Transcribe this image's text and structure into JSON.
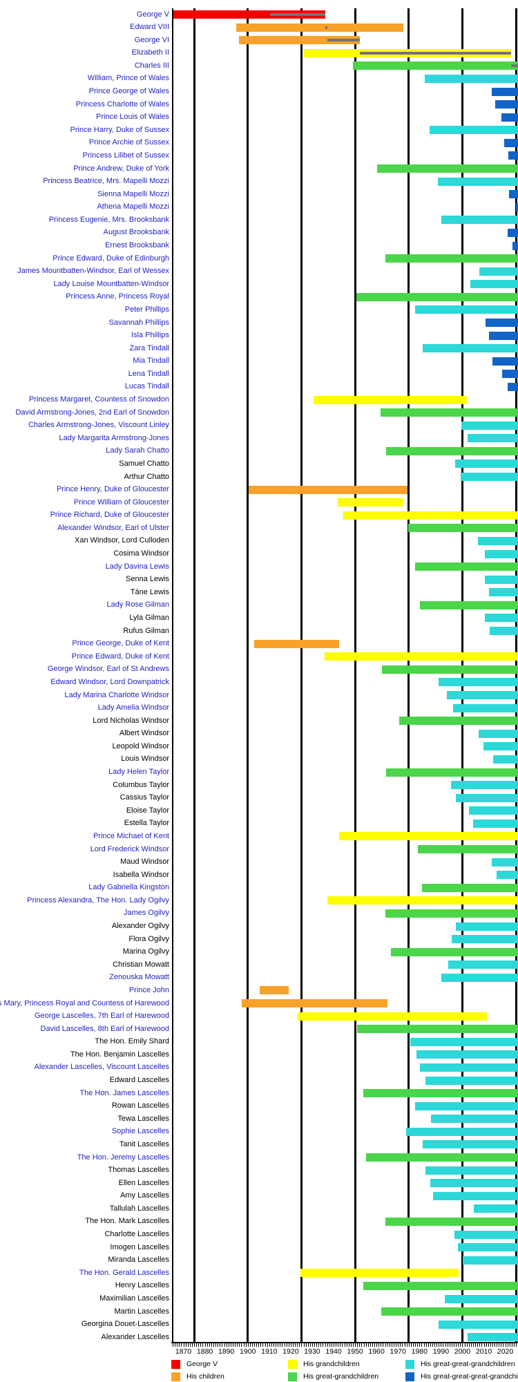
{
  "chart_data": {
    "type": "timeline",
    "description": "Lifespan timeline of George V and his descendants; grey inner stripes mark reigns of monarchs",
    "axis": {
      "start_year": 1865,
      "end_year": 2026,
      "tick_interval_years": 1,
      "gridline_years": [
        1875,
        1900,
        1925,
        1950,
        1975,
        2000,
        2025
      ],
      "decade_labels": [
        "1870",
        "1880",
        "1890",
        "1900",
        "1910",
        "1920",
        "1930",
        "1940",
        "1950",
        "1960",
        "1970",
        "1980",
        "1990",
        "2000",
        "2010",
        "2020"
      ]
    },
    "colors": {
      "generation": [
        "#f70000",
        "#f8a22a",
        "#fdfd00",
        "#4ad54a",
        "#2cd8d8",
        "#1164c8"
      ],
      "reign_stripe": "#747474",
      "link_text": "#1f1fbf",
      "plain_text": "#000000",
      "gridline": "#000000"
    },
    "legend": [
      {
        "label": "George V",
        "generation": 0
      },
      {
        "label": "His children",
        "generation": 1
      },
      {
        "label": "His grandchildren",
        "generation": 2
      },
      {
        "label": "His great-grandchildren",
        "generation": 3
      },
      {
        "label": "His great-great-grandchildren",
        "generation": 4
      },
      {
        "label": "His great-great-great-grandchildren",
        "generation": 5
      }
    ],
    "people": [
      {
        "name": "George V",
        "linked": true,
        "generation": 0,
        "born": 1865.4,
        "died": 1936.05,
        "reign": [
          1910.35,
          1936.05
        ]
      },
      {
        "name": "Edward VIII",
        "linked": true,
        "generation": 1,
        "born": 1894.5,
        "died": 1972.4,
        "reign": [
          1936.05,
          1936.95
        ]
      },
      {
        "name": "George VI",
        "linked": true,
        "generation": 1,
        "born": 1895.95,
        "died": 1952.1,
        "reign": [
          1936.95,
          1952.1
        ]
      },
      {
        "name": "Elizabeth II",
        "linked": true,
        "generation": 2,
        "born": 1926.3,
        "died": 2022.7,
        "reign": [
          1952.1,
          2022.7
        ]
      },
      {
        "name": "Charles III",
        "linked": true,
        "generation": 3,
        "born": 1948.9,
        "died": null,
        "reign": [
          2022.7,
          null
        ]
      },
      {
        "name": "William, Prince of Wales",
        "linked": true,
        "generation": 4,
        "born": 1982.5,
        "died": null
      },
      {
        "name": "Prince George of Wales",
        "linked": true,
        "generation": 5,
        "born": 2013.55,
        "died": null
      },
      {
        "name": "Princess Charlotte of Wales",
        "linked": true,
        "generation": 5,
        "born": 2015.35,
        "died": null
      },
      {
        "name": "Prince Louis of Wales",
        "linked": true,
        "generation": 5,
        "born": 2018.3,
        "died": null
      },
      {
        "name": "Prince Harry, Duke of Sussex",
        "linked": true,
        "generation": 4,
        "born": 1984.7,
        "died": null
      },
      {
        "name": "Prince Archie of Sussex",
        "linked": true,
        "generation": 5,
        "born": 2019.35,
        "died": null
      },
      {
        "name": "Princess Lilibet of Sussex",
        "linked": true,
        "generation": 5,
        "born": 2021.4,
        "died": null
      },
      {
        "name": "Prince Andrew, Duke of York",
        "linked": true,
        "generation": 3,
        "born": 1960.15,
        "died": null
      },
      {
        "name": "Princess Beatrice, Mrs. Mapelli Mozzi",
        "linked": true,
        "generation": 4,
        "born": 1988.6,
        "died": null
      },
      {
        "name": "Sienna Mapelli Mozzi",
        "linked": true,
        "generation": 5,
        "born": 2021.7,
        "died": null
      },
      {
        "name": "Athena Mapelli Mozzi",
        "linked": true,
        "generation": 5,
        "born": 2025.05,
        "died": null
      },
      {
        "name": "Princess Eugenie, Mrs. Brooksbank",
        "linked": true,
        "generation": 4,
        "born": 1990.25,
        "died": null
      },
      {
        "name": "August Brooksbank",
        "linked": true,
        "generation": 5,
        "born": 2021.1,
        "died": null
      },
      {
        "name": "Ernest Brooksbank",
        "linked": true,
        "generation": 5,
        "born": 2023.4,
        "died": null
      },
      {
        "name": "Prince Edward, Duke of Edinburgh",
        "linked": true,
        "generation": 3,
        "born": 1964.2,
        "died": null
      },
      {
        "name": "James Mountbatten-Windsor, Earl of Wessex",
        "linked": true,
        "generation": 4,
        "born": 2007.95,
        "died": null
      },
      {
        "name": "Lady Louise Mountbatten-Windsor",
        "linked": true,
        "generation": 4,
        "born": 2003.85,
        "died": null
      },
      {
        "name": "Princess Anne, Princess Royal",
        "linked": true,
        "generation": 3,
        "born": 1950.6,
        "died": null
      },
      {
        "name": "Peter Phillips",
        "linked": true,
        "generation": 4,
        "born": 1977.85,
        "died": null
      },
      {
        "name": "Savannah Phillips",
        "linked": true,
        "generation": 5,
        "born": 2010.95,
        "died": null
      },
      {
        "name": "Isla Phillips",
        "linked": true,
        "generation": 5,
        "born": 2012.25,
        "died": null
      },
      {
        "name": "Zara Tindall",
        "linked": true,
        "generation": 4,
        "born": 1981.4,
        "died": null
      },
      {
        "name": "Mia Tindall",
        "linked": true,
        "generation": 5,
        "born": 2014.05,
        "died": null
      },
      {
        "name": "Lena Tindall",
        "linked": true,
        "generation": 5,
        "born": 2018.45,
        "died": null
      },
      {
        "name": "Lucas Tindall",
        "linked": true,
        "generation": 5,
        "born": 2021.2,
        "died": null
      },
      {
        "name": "Princess Margaret, Countess of Snowdon",
        "linked": true,
        "generation": 2,
        "born": 1930.6,
        "died": 2002.1
      },
      {
        "name": "David Armstrong-Jones, 2nd Earl of Snowdon",
        "linked": true,
        "generation": 3,
        "born": 1961.85,
        "died": null
      },
      {
        "name": "Charles Armstrong-Jones, Viscount Linley",
        "linked": true,
        "generation": 4,
        "born": 1999.5,
        "died": null
      },
      {
        "name": "Lady Margarita Armstrong-Jones",
        "linked": true,
        "generation": 4,
        "born": 2002.35,
        "died": null
      },
      {
        "name": "Lady Sarah Chatto",
        "linked": true,
        "generation": 3,
        "born": 1964.35,
        "died": null
      },
      {
        "name": "Samuel Chatto",
        "linked": false,
        "generation": 4,
        "born": 1996.55,
        "died": null
      },
      {
        "name": "Arthur Chatto",
        "linked": false,
        "generation": 4,
        "born": 1999.1,
        "died": null
      },
      {
        "name": "Prince Henry, Duke of Gloucester",
        "linked": true,
        "generation": 1,
        "born": 1900.25,
        "died": 1974.45
      },
      {
        "name": "Prince William of Gloucester",
        "linked": true,
        "generation": 2,
        "born": 1941.95,
        "died": 1972.65
      },
      {
        "name": "Prince Richard, Duke of Gloucester",
        "linked": true,
        "generation": 2,
        "born": 1944.65,
        "died": null
      },
      {
        "name": "Alexander Windsor, Earl of Ulster",
        "linked": true,
        "generation": 3,
        "born": 1974.8,
        "died": null
      },
      {
        "name": "Xan Windsor, Lord Culloden",
        "linked": false,
        "generation": 4,
        "born": 2007.2,
        "died": null
      },
      {
        "name": "Cosima Windsor",
        "linked": false,
        "generation": 4,
        "born": 2010.35,
        "died": null
      },
      {
        "name": "Lady Davina Lewis",
        "linked": true,
        "generation": 3,
        "born": 1977.9,
        "died": null
      },
      {
        "name": "Senna Lewis",
        "linked": false,
        "generation": 4,
        "born": 2010.45,
        "died": null
      },
      {
        "name": "Tāne Lewis",
        "linked": false,
        "generation": 4,
        "born": 2012.4,
        "died": null
      },
      {
        "name": "Lady Rose Gilman",
        "linked": true,
        "generation": 3,
        "born": 1980.2,
        "died": null
      },
      {
        "name": "Lyla Gilman",
        "linked": false,
        "generation": 4,
        "born": 2010.4,
        "died": null
      },
      {
        "name": "Rufus Gilman",
        "linked": false,
        "generation": 4,
        "born": 2012.8,
        "died": null
      },
      {
        "name": "Prince George, Duke of Kent",
        "linked": true,
        "generation": 1,
        "born": 1902.95,
        "died": 1942.65
      },
      {
        "name": "Prince Edward, Duke of Kent",
        "linked": true,
        "generation": 2,
        "born": 1935.8,
        "died": null
      },
      {
        "name": "George Windsor, Earl of St Andrews",
        "linked": true,
        "generation": 3,
        "born": 1962.5,
        "died": null
      },
      {
        "name": "Edward Windsor, Lord Downpatrick",
        "linked": true,
        "generation": 4,
        "born": 1988.9,
        "died": null
      },
      {
        "name": "Lady Marina Charlotte Windsor",
        "linked": true,
        "generation": 4,
        "born": 1992.75,
        "died": null
      },
      {
        "name": "Lady Amelia Windsor",
        "linked": true,
        "generation": 4,
        "born": 1995.65,
        "died": null
      },
      {
        "name": "Lord Nicholas Windsor",
        "linked": false,
        "generation": 3,
        "born": 1970.55,
        "died": null
      },
      {
        "name": "Albert Windsor",
        "linked": false,
        "generation": 4,
        "born": 2007.7,
        "died": null
      },
      {
        "name": "Leopold Windsor",
        "linked": false,
        "generation": 4,
        "born": 2009.7,
        "died": null
      },
      {
        "name": "Louis Windsor",
        "linked": false,
        "generation": 4,
        "born": 2014.35,
        "died": null
      },
      {
        "name": "Lady Helen Taylor",
        "linked": true,
        "generation": 3,
        "born": 1964.3,
        "died": null
      },
      {
        "name": "Columbus Taylor",
        "linked": false,
        "generation": 4,
        "born": 1994.6,
        "died": null
      },
      {
        "name": "Cassius Taylor",
        "linked": false,
        "generation": 4,
        "born": 1996.95,
        "died": null
      },
      {
        "name": "Eloise Taylor",
        "linked": false,
        "generation": 4,
        "born": 2003.15,
        "died": null
      },
      {
        "name": "Estella Taylor",
        "linked": false,
        "generation": 4,
        "born": 2004.95,
        "died": null
      },
      {
        "name": "Prince Michael of Kent",
        "linked": true,
        "generation": 2,
        "born": 1942.5,
        "died": null
      },
      {
        "name": "Lord Frederick Windsor",
        "linked": true,
        "generation": 3,
        "born": 1979.3,
        "died": null
      },
      {
        "name": "Maud Windsor",
        "linked": false,
        "generation": 4,
        "born": 2013.6,
        "died": null
      },
      {
        "name": "Isabella Windsor",
        "linked": false,
        "generation": 4,
        "born": 2016.05,
        "died": null
      },
      {
        "name": "Lady Gabriella Kingston",
        "linked": true,
        "generation": 3,
        "born": 1981.3,
        "died": null
      },
      {
        "name": "Princess Alexandra, The Hon. Lady Ogilvy",
        "linked": true,
        "generation": 2,
        "born": 1936.95,
        "died": null
      },
      {
        "name": "James Ogilvy",
        "linked": true,
        "generation": 3,
        "born": 1964.15,
        "died": null
      },
      {
        "name": "Alexander Ogilvy",
        "linked": false,
        "generation": 4,
        "born": 1996.9,
        "died": null
      },
      {
        "name": "Flora Ogilvy",
        "linked": false,
        "generation": 4,
        "born": 1994.95,
        "died": null
      },
      {
        "name": "Marina Ogilvy",
        "linked": false,
        "generation": 3,
        "born": 1966.6,
        "died": null
      },
      {
        "name": "Christian Mowatt",
        "linked": false,
        "generation": 4,
        "born": 1993.45,
        "died": null
      },
      {
        "name": "Zenouska Mowatt",
        "linked": true,
        "generation": 4,
        "born": 1990.35,
        "died": null
      },
      {
        "name": "Prince John",
        "linked": true,
        "generation": 1,
        "born": 1905.5,
        "died": 1919.05
      },
      {
        "name": "Princess Mary, Princess Royal and Countess of Harewood",
        "linked": true,
        "generation": 1,
        "born": 1897.3,
        "died": 1965.2
      },
      {
        "name": "George Lascelles, 7th Earl of Harewood",
        "linked": true,
        "generation": 2,
        "born": 1923.1,
        "died": 2011.5
      },
      {
        "name": "David Lascelles, 8th Earl of Harewood",
        "linked": true,
        "generation": 3,
        "born": 1950.8,
        "died": null
      },
      {
        "name": "The Hon. Emily Shard",
        "linked": false,
        "generation": 4,
        "born": 1975.85,
        "died": null
      },
      {
        "name": "The Hon. Benjamin Lascelles",
        "linked": false,
        "generation": 4,
        "born": 1978.7,
        "died": null
      },
      {
        "name": "Alexander Lascelles, Viscount Lascelles",
        "linked": true,
        "generation": 4,
        "born": 1980.35,
        "died": null
      },
      {
        "name": "Edward Lascelles",
        "linked": false,
        "generation": 4,
        "born": 1982.9,
        "died": null
      },
      {
        "name": "The Hon. James Lascelles",
        "linked": true,
        "generation": 3,
        "born": 1953.8,
        "died": null
      },
      {
        "name": "Rowan Lascelles",
        "linked": false,
        "generation": 4,
        "born": 1977.85,
        "died": null
      },
      {
        "name": "Tewa Lascelles",
        "linked": false,
        "generation": 4,
        "born": 1985.45,
        "died": null
      },
      {
        "name": "Sophie Lascelles",
        "linked": true,
        "generation": 4,
        "born": 1973.8,
        "died": null
      },
      {
        "name": "Tanit Lascelles",
        "linked": false,
        "generation": 4,
        "born": 1981.55,
        "died": null
      },
      {
        "name": "The Hon. Jeremy Lascelles",
        "linked": true,
        "generation": 3,
        "born": 1955.1,
        "died": null
      },
      {
        "name": "Thomas Lascelles",
        "linked": false,
        "generation": 4,
        "born": 1982.7,
        "died": null
      },
      {
        "name": "Ellen Lascelles",
        "linked": false,
        "generation": 4,
        "born": 1984.95,
        "died": null
      },
      {
        "name": "Amy Lascelles",
        "linked": false,
        "generation": 4,
        "born": 1986.45,
        "died": null
      },
      {
        "name": "Tallulah Lascelles",
        "linked": false,
        "generation": 4,
        "born": 2005.2,
        "died": null
      },
      {
        "name": "The Hon. Mark Lascelles",
        "linked": false,
        "generation": 3,
        "born": 1964.1,
        "died": null
      },
      {
        "name": "Charlotte Lascelles",
        "linked": false,
        "generation": 4,
        "born": 1996.2,
        "died": null
      },
      {
        "name": "Imogen Lascelles",
        "linked": false,
        "generation": 4,
        "born": 1998.05,
        "died": null
      },
      {
        "name": "Miranda Lascelles",
        "linked": false,
        "generation": 4,
        "born": 2000.3,
        "died": null
      },
      {
        "name": "The Hon. Gerald Lascelles",
        "linked": true,
        "generation": 2,
        "born": 1924.6,
        "died": 1998.1
      },
      {
        "name": "Henry Lascelles",
        "linked": false,
        "generation": 3,
        "born": 1953.75,
        "died": null
      },
      {
        "name": "Maximilian Lascelles",
        "linked": false,
        "generation": 4,
        "born": 1991.95,
        "died": null
      },
      {
        "name": "Martin Lascelles",
        "linked": false,
        "generation": 3,
        "born": 1962.15,
        "died": null
      },
      {
        "name": "Georgina Douet-Lascelles",
        "linked": false,
        "generation": 4,
        "born": 1988.8,
        "died": null
      },
      {
        "name": "Alexander Lascelles",
        "linked": false,
        "generation": 4,
        "born": 2002.5,
        "died": null
      }
    ]
  }
}
